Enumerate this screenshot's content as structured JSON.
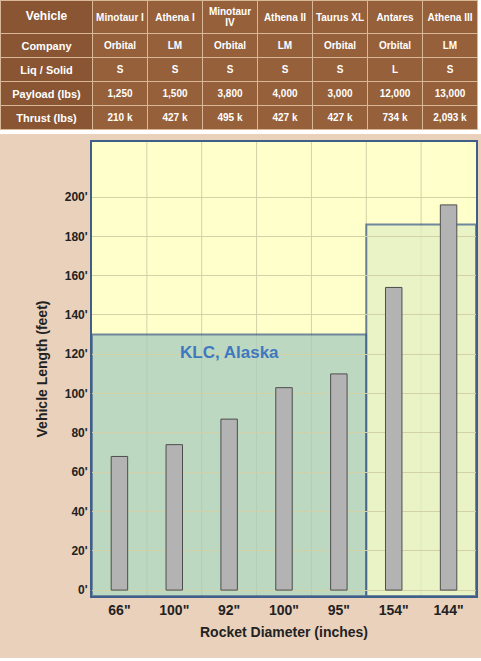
{
  "table": {
    "header_label": "Vehicle",
    "row_labels": [
      "Company",
      "Liq / Solid",
      "Payload (lbs)",
      "Thrust (lbs)"
    ],
    "vehicles": [
      {
        "name": "Minotaur I",
        "company": "Orbital",
        "liq_solid": "S",
        "payload": "1,250",
        "thrust": "210 k"
      },
      {
        "name": "Athena I",
        "company": "LM",
        "liq_solid": "S",
        "payload": "1,500",
        "thrust": "427 k"
      },
      {
        "name": "Minotaur IV",
        "company": "Orbital",
        "liq_solid": "S",
        "payload": "3,800",
        "thrust": "495 k"
      },
      {
        "name": "Athena II",
        "company": "LM",
        "liq_solid": "S",
        "payload": "4,000",
        "thrust": "427 k"
      },
      {
        "name": "Taurus XL",
        "company": "Orbital",
        "liq_solid": "S",
        "payload": "3,000",
        "thrust": "427 k"
      },
      {
        "name": "Antares",
        "company": "Orbital",
        "liq_solid": "L",
        "payload": "12,000",
        "thrust": "734 k"
      },
      {
        "name": "Athena III",
        "company": "LM",
        "liq_solid": "S",
        "payload": "13,000",
        "thrust": "2,093 k"
      }
    ]
  },
  "chart_data": {
    "type": "bar",
    "x_label": "Rocket Diameter (inches)",
    "y_label": "Vehicle Length (feet)",
    "categories": [
      "66\"",
      "100\"",
      "92\"",
      "100\"",
      "95\"",
      "154\"",
      "144\""
    ],
    "values": [
      68,
      74,
      87,
      103,
      110,
      154,
      196
    ],
    "color": "#b3b3b3",
    "ylim": [
      -3,
      228
    ],
    "yticks": [
      {
        "value": 0,
        "label": "0'"
      },
      {
        "value": 20,
        "label": "20'"
      },
      {
        "value": 40,
        "label": "40'"
      },
      {
        "value": 60,
        "label": "60'"
      },
      {
        "value": 80,
        "label": "80'"
      },
      {
        "value": 100,
        "label": "100'"
      },
      {
        "value": 120,
        "label": "120'"
      },
      {
        "value": 140,
        "label": "140'"
      },
      {
        "value": 160,
        "label": "160'"
      },
      {
        "value": 180,
        "label": "180'"
      },
      {
        "value": 200,
        "label": "200'"
      }
    ],
    "grid": true,
    "regions": [
      {
        "label": "KLC, Alaska",
        "first": "Minotaur I",
        "last": "Taurus XL",
        "height": 130,
        "color": "#a8cbbd"
      },
      {
        "first": "Antares",
        "last": "Athena III",
        "height": 186,
        "color": "#e3f0c4"
      }
    ]
  }
}
